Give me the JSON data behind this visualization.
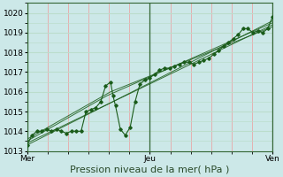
{
  "background_color": "#cce8e8",
  "plot_bg_color": "#cce8e8",
  "grid_major_color": "#ee9999",
  "grid_minor_color": "#bbddcc",
  "line_color": "#1a5c1a",
  "marker_color": "#1a5c1a",
  "vline_color": "#336633",
  "ylim": [
    1013.0,
    1020.5
  ],
  "yticks": [
    1013,
    1014,
    1015,
    1016,
    1017,
    1018,
    1019,
    1020
  ],
  "xlabel": "Pression niveau de la mer( hPa )",
  "xlabel_fontsize": 8,
  "tick_fontsize": 6.5,
  "day_labels": [
    "Mer",
    "Jeu",
    "Ven"
  ],
  "day_positions": [
    0.0,
    1.0,
    2.0
  ],
  "series": [
    [
      0.0,
      1013.3
    ],
    [
      0.04,
      1013.8
    ],
    [
      0.08,
      1014.0
    ],
    [
      0.12,
      1014.0
    ],
    [
      0.16,
      1014.1
    ],
    [
      0.2,
      1014.0
    ],
    [
      0.24,
      1014.1
    ],
    [
      0.28,
      1014.0
    ],
    [
      0.32,
      1013.9
    ],
    [
      0.36,
      1014.0
    ],
    [
      0.4,
      1014.0
    ],
    [
      0.44,
      1014.0
    ],
    [
      0.48,
      1015.0
    ],
    [
      0.52,
      1015.1
    ],
    [
      0.56,
      1015.2
    ],
    [
      0.6,
      1015.5
    ],
    [
      0.64,
      1016.3
    ],
    [
      0.68,
      1016.5
    ],
    [
      0.7,
      1015.8
    ],
    [
      0.72,
      1015.3
    ],
    [
      0.76,
      1014.1
    ],
    [
      0.8,
      1013.8
    ],
    [
      0.84,
      1014.2
    ],
    [
      0.88,
      1015.5
    ],
    [
      0.92,
      1016.4
    ],
    [
      0.96,
      1016.6
    ],
    [
      1.0,
      1016.7
    ],
    [
      1.04,
      1016.9
    ],
    [
      1.08,
      1017.1
    ],
    [
      1.12,
      1017.2
    ],
    [
      1.16,
      1017.2
    ],
    [
      1.2,
      1017.3
    ],
    [
      1.24,
      1017.4
    ],
    [
      1.28,
      1017.5
    ],
    [
      1.32,
      1017.5
    ],
    [
      1.36,
      1017.4
    ],
    [
      1.4,
      1017.5
    ],
    [
      1.44,
      1017.6
    ],
    [
      1.48,
      1017.7
    ],
    [
      1.52,
      1017.9
    ],
    [
      1.56,
      1018.1
    ],
    [
      1.6,
      1018.3
    ],
    [
      1.64,
      1018.5
    ],
    [
      1.68,
      1018.7
    ],
    [
      1.72,
      1018.9
    ],
    [
      1.76,
      1019.2
    ],
    [
      1.8,
      1019.2
    ],
    [
      1.84,
      1019.0
    ],
    [
      1.88,
      1019.1
    ],
    [
      1.92,
      1019.0
    ],
    [
      1.96,
      1019.2
    ],
    [
      2.0,
      1019.8
    ]
  ],
  "trend_lines": [
    [
      [
        0.0,
        1013.3
      ],
      [
        2.0,
        1019.6
      ]
    ],
    [
      [
        0.0,
        1013.4
      ],
      [
        2.0,
        1019.4
      ]
    ],
    [
      [
        0.0,
        1013.5
      ],
      [
        0.65,
        1015.8
      ],
      [
        2.0,
        1019.5
      ]
    ],
    [
      [
        0.0,
        1013.6
      ],
      [
        0.68,
        1016.0
      ],
      [
        2.0,
        1019.3
      ]
    ]
  ]
}
